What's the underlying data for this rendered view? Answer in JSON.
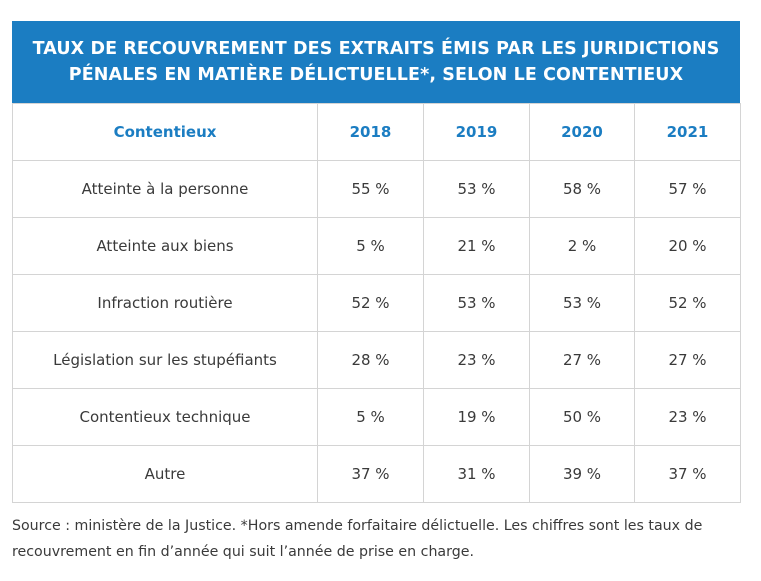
{
  "title": {
    "line1": "TAUX DE RECOUVREMENT DES EXTRAITS ÉMIS PAR LES JURIDICTIONS",
    "line2": "PÉNALES EN MATIÈRE DÉLICTUELLE*, SELON LE CONTENTIEUX"
  },
  "table": {
    "headers": [
      "Contentieux",
      "2018",
      "2019",
      "2020",
      "2021"
    ],
    "rows": [
      {
        "label": "Atteinte à la personne",
        "values": [
          "55 %",
          "53 %",
          "58 %",
          "57 %"
        ]
      },
      {
        "label": "Atteinte aux biens",
        "values": [
          "5 %",
          "21 %",
          "2 %",
          "20 %"
        ]
      },
      {
        "label": "Infraction routière",
        "values": [
          "52 %",
          "53 %",
          "53 %",
          "52 %"
        ]
      },
      {
        "label": "Législation sur les stupéfiants",
        "values": [
          "28 %",
          "23 %",
          "27 %",
          "27 %"
        ]
      },
      {
        "label": "Contentieux technique",
        "values": [
          "5 %",
          "19 %",
          "50 %",
          "23 %"
        ]
      },
      {
        "label": "Autre",
        "values": [
          "37 %",
          "31 %",
          "39 %",
          "37 %"
        ]
      }
    ]
  },
  "source": {
    "line1": "Source : ministère de la Justice. *Hors amende forfaitaire délictuelle. Les chiffres sont les taux de",
    "line2": "recouvrement en fin d’année qui suit l’année de prise en charge."
  },
  "colors": {
    "accent": "#1b7dc2",
    "border": "#d4d4d4",
    "text": "#3a3a3a"
  }
}
